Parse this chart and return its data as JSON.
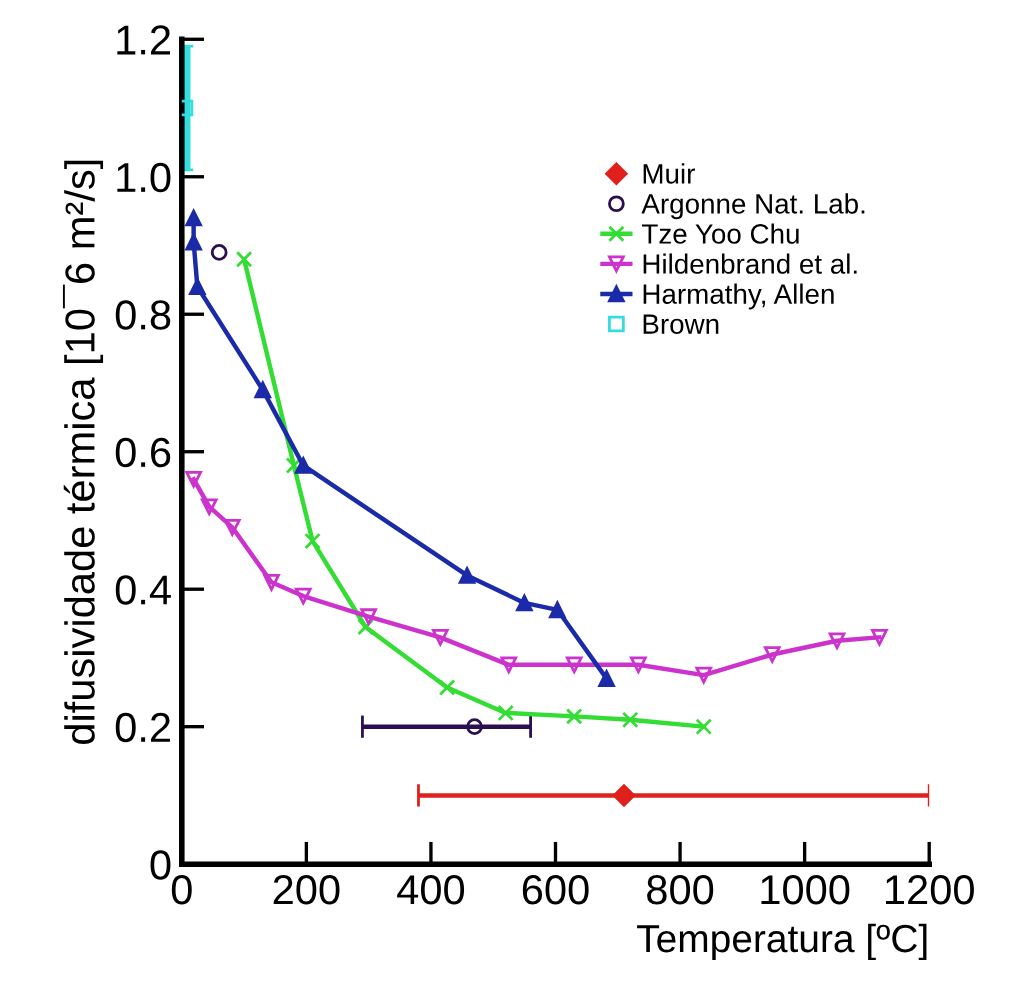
{
  "chart_data": {
    "type": "line",
    "xlabel": "Temperatura [ºC]",
    "ylabel": "difusividade térmica [10¯6 m²/s]",
    "xlim": [
      0,
      1200
    ],
    "ylim": [
      0,
      1.2
    ],
    "xticks": [
      0,
      200,
      400,
      600,
      800,
      1000,
      1200
    ],
    "yticks": [
      0,
      0.2,
      0.4,
      0.6,
      0.8,
      {
        "value": 1,
        "label": "1.0"
      },
      1.2
    ],
    "grid": false,
    "legend": "top right",
    "series": [
      {
        "name": "Muir",
        "type": "scatter",
        "marker": "diamond",
        "color": "#e0201c",
        "x": [
          710
        ],
        "values": [
          0.1
        ],
        "xerrors": [
          [
            380,
            1200
          ]
        ]
      },
      {
        "name": "Argonne Nat. Lab.",
        "type": "scatter",
        "marker": "circle",
        "color": "#2a1050",
        "x": [
          60,
          470
        ],
        "values": [
          0.89,
          0.2
        ],
        "xerrors": [
          null,
          [
            290,
            560
          ]
        ]
      },
      {
        "name": "Tze Yoo Chu",
        "marker": "cross",
        "color": "#33dd33",
        "x": [
          100,
          180,
          210,
          295,
          426,
          520,
          630,
          720,
          838
        ],
        "values": [
          0.88,
          0.58,
          0.47,
          0.345,
          0.257,
          0.22,
          0.215,
          0.21,
          0.2
        ]
      },
      {
        "name": "Hildenbrand et al.",
        "marker": "triangle_down",
        "color": "#cc33cc",
        "x": [
          19,
          44,
          81,
          144,
          195,
          300,
          415,
          525,
          630,
          733,
          838,
          948,
          1052,
          1120
        ],
        "values": [
          0.56,
          0.52,
          0.49,
          0.41,
          0.39,
          0.36,
          0.33,
          0.29,
          0.29,
          0.29,
          0.275,
          0.305,
          0.325,
          0.33
        ]
      },
      {
        "name": "Harmathy, Allen",
        "marker": "triangle",
        "color": "#1a2aa8",
        "x": [
          19,
          19,
          25,
          130,
          195,
          458,
          550,
          603,
          682
        ],
        "values": [
          0.94,
          0.905,
          0.84,
          0.69,
          0.58,
          0.42,
          0.38,
          0.37,
          0.27
        ]
      },
      {
        "name": "Brown",
        "type": "scatter",
        "marker": "square",
        "color": "#33dddd",
        "x": [
          5
        ],
        "values": [
          1.1
        ],
        "errors": [
          [
            1.01,
            1.19
          ]
        ]
      }
    ]
  }
}
